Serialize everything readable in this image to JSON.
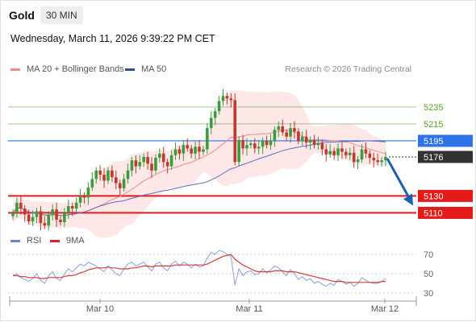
{
  "header": {
    "instrument": "Gold",
    "timeframe": "30 MIN",
    "datetime": "Wednesday, March 11, 2026 9:39:22 PM CET"
  },
  "legend_main": [
    {
      "label": "MA 20 + Bollinger Bands",
      "color": "#f08b85"
    },
    {
      "label": "MA 50",
      "color": "#2f4f8f"
    }
  ],
  "legend_rsi": [
    {
      "label": "RSI",
      "color": "#6b85d4"
    },
    {
      "label": "9MA",
      "color": "#e02020"
    }
  ],
  "credit": "Research © 2026 Trading Central",
  "colors": {
    "green_level": "#5aa02c",
    "blue_level": "#2f73e8",
    "red_level": "#e31b1b",
    "current_price": "#333333",
    "bull_candle": "#3d9a3d",
    "bear_candle": "#c0392b",
    "band_fill": "#fde3e3"
  },
  "chart_data": [
    {
      "type": "candlestick",
      "price_range": [
        5080,
        5270
      ],
      "x_labels": [
        "Mar 10",
        "Mar 11",
        "Mar 12"
      ],
      "levels": [
        {
          "value": 5235,
          "label": "5235",
          "kind": "resistance"
        },
        {
          "value": 5215,
          "label": "5215",
          "kind": "resistance"
        },
        {
          "value": 5195,
          "label": "5195",
          "kind": "pivot"
        },
        {
          "value": 5176,
          "label": "5176",
          "kind": "current"
        },
        {
          "value": 5130,
          "label": "5130",
          "kind": "support"
        },
        {
          "value": 5110,
          "label": "5110",
          "kind": "support"
        }
      ],
      "close_path": [
        5110,
        5122,
        5115,
        5108,
        5100,
        5105,
        5112,
        5098,
        5095,
        5108,
        5114,
        5102,
        5099,
        5110,
        5118,
        5115,
        5122,
        5130,
        5128,
        5140,
        5150,
        5160,
        5155,
        5148,
        5160,
        5152,
        5145,
        5139,
        5150,
        5160,
        5172,
        5165,
        5170,
        5176,
        5168,
        5160,
        5175,
        5180,
        5170,
        5165,
        5178,
        5185,
        5180,
        5190,
        5186,
        5180,
        5188,
        5182,
        5185,
        5210,
        5222,
        5230,
        5242,
        5248,
        5245,
        5243,
        5170,
        5196,
        5186,
        5190,
        5192,
        5186,
        5188,
        5195,
        5190,
        5195,
        5208,
        5212,
        5205,
        5200,
        5210,
        5206,
        5195,
        5200,
        5193,
        5196,
        5190,
        5192,
        5185,
        5179,
        5183,
        5178,
        5186,
        5182,
        5178,
        5181,
        5170,
        5173,
        5185,
        5180,
        5175,
        5172,
        5170,
        5172,
        5176
      ],
      "rsi": {
        "range": [
          20,
          80
        ],
        "ticks": [
          70,
          50,
          30
        ],
        "rsi_path": [
          48,
          50,
          46,
          44,
          42,
          45,
          50,
          43,
          40,
          48,
          52,
          45,
          43,
          50,
          55,
          52,
          56,
          60,
          58,
          62,
          60,
          58,
          55,
          52,
          58,
          54,
          50,
          48,
          55,
          60,
          62,
          58,
          60,
          62,
          57,
          53,
          60,
          62,
          56,
          53,
          60,
          63,
          58,
          62,
          60,
          56,
          60,
          57,
          58,
          66,
          72,
          70,
          74,
          73,
          70,
          68,
          38,
          55,
          48,
          52,
          53,
          49,
          50,
          55,
          51,
          54,
          58,
          56,
          52,
          48,
          54,
          50,
          44,
          47,
          43,
          45,
          40,
          42,
          39,
          37,
          40,
          38,
          44,
          42,
          39,
          41,
          37,
          40,
          46,
          43,
          41,
          40,
          40,
          42,
          45
        ],
        "ma_path": [
          48,
          48,
          47,
          47,
          46,
          46,
          46,
          45,
          45,
          46,
          46,
          46,
          46,
          47,
          48,
          48,
          49,
          51,
          52,
          54,
          55,
          56,
          56,
          56,
          57,
          56,
          56,
          55,
          55,
          55,
          56,
          56,
          57,
          58,
          58,
          57,
          58,
          58,
          58,
          58,
          58,
          59,
          59,
          59,
          59,
          59,
          59,
          59,
          59,
          60,
          62,
          64,
          66,
          68,
          69,
          70,
          65,
          62,
          59,
          57,
          55,
          53,
          52,
          52,
          52,
          52,
          53,
          53,
          53,
          52,
          52,
          52,
          51,
          50,
          49,
          48,
          47,
          46,
          45,
          44,
          43,
          42,
          42,
          42,
          41,
          41,
          41,
          41,
          41,
          41,
          41,
          41,
          41,
          42,
          42
        ]
      }
    }
  ]
}
